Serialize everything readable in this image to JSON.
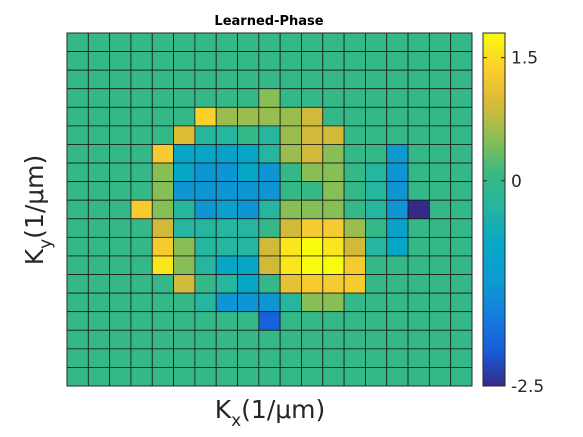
{
  "chart_data": {
    "type": "heatmap",
    "title": "Learned-Phase",
    "xlabel": {
      "base": "K",
      "sub": "x",
      "rest": "(1/μm)"
    },
    "ylabel": {
      "base": "K",
      "sub": "y",
      "rest": "(1/μm)"
    },
    "colormap": "parula",
    "clim": [
      -2.5,
      1.8
    ],
    "colorbar_ticks": [
      {
        "value": 1.5,
        "label": "1.5"
      },
      {
        "value": 0,
        "label": "0"
      },
      {
        "value": -2.5,
        "label": "-2.5"
      }
    ],
    "grid": true,
    "rows": 19,
    "cols": 19,
    "values": [
      [
        0,
        0,
        0,
        0,
        0,
        0,
        0,
        0,
        0,
        0,
        0,
        0,
        0,
        0,
        0,
        0,
        0,
        0,
        0
      ],
      [
        0,
        0,
        0,
        0,
        0,
        0,
        0,
        0,
        0,
        0,
        0,
        0,
        0,
        0,
        0,
        0,
        0,
        0,
        0
      ],
      [
        0,
        0,
        0,
        0,
        0,
        0,
        0,
        0,
        0,
        0,
        0,
        0,
        0,
        0,
        0,
        0,
        0,
        0,
        0
      ],
      [
        0,
        0,
        0,
        0,
        0,
        0,
        0,
        0,
        0,
        0.5,
        0,
        0,
        0,
        0,
        0,
        0,
        0,
        0,
        0
      ],
      [
        0,
        0,
        0,
        0,
        0,
        0,
        1.4,
        0.6,
        0.6,
        0.6,
        0.6,
        0.9,
        0,
        0,
        0,
        0,
        0,
        0,
        0
      ],
      [
        0,
        0,
        0,
        0,
        0,
        1.0,
        -0.3,
        -0.3,
        0,
        -0.3,
        0.6,
        0.9,
        0.9,
        0,
        0,
        0,
        0,
        0,
        0
      ],
      [
        0,
        0,
        0,
        0,
        1.3,
        -0.8,
        -0.8,
        -1.0,
        -0.8,
        -0.3,
        0.6,
        0.9,
        0.5,
        0,
        0,
        -1.2,
        0,
        0,
        0
      ],
      [
        0,
        0,
        0,
        0,
        0.5,
        -0.8,
        -1.3,
        -1.3,
        -0.8,
        -1.3,
        0,
        0.5,
        0.5,
        0,
        -0.3,
        -1.3,
        0,
        0,
        0
      ],
      [
        0,
        0,
        0,
        0,
        0.5,
        -1.3,
        -1.3,
        -1.3,
        -1.3,
        -1.3,
        0,
        0,
        0.5,
        0,
        -0.3,
        -1.3,
        0,
        0,
        0
      ],
      [
        0,
        0,
        0,
        1.3,
        0.5,
        -0.3,
        -1.3,
        -1.0,
        -1.3,
        -0.3,
        0.5,
        0.5,
        0.5,
        0,
        -0.3,
        -1.3,
        -2.5,
        0,
        0
      ],
      [
        0,
        0,
        0,
        0,
        0.9,
        -0.3,
        -0.3,
        -0.3,
        -0.3,
        0,
        0.9,
        1.3,
        1.3,
        0.6,
        0,
        -1.0,
        0,
        0,
        0
      ],
      [
        0,
        0,
        0,
        0,
        1.3,
        0.5,
        -0.3,
        -0.3,
        -0.3,
        0.9,
        1.6,
        1.8,
        1.6,
        0.9,
        -0.3,
        -0.8,
        0,
        0,
        0
      ],
      [
        0,
        0,
        0,
        0,
        1.6,
        0.5,
        -0.3,
        -0.8,
        -0.8,
        0.9,
        1.6,
        1.8,
        1.8,
        1.3,
        0,
        0,
        0,
        0,
        0
      ],
      [
        0,
        0,
        0,
        0,
        0,
        0.9,
        0,
        -0.3,
        -0.8,
        0,
        1.1,
        1.3,
        1.3,
        1.3,
        0,
        0,
        0,
        0,
        0
      ],
      [
        0,
        0,
        0,
        0,
        0,
        0,
        -0.3,
        -1.3,
        -1.3,
        -1.3,
        -0.3,
        0.5,
        0.5,
        0,
        0,
        0,
        0,
        0,
        0
      ],
      [
        0,
        0,
        0,
        0,
        0,
        0,
        0,
        0,
        0,
        -2.0,
        0,
        0,
        0,
        0,
        0,
        0,
        0,
        0,
        0
      ],
      [
        0,
        0,
        0,
        0,
        0,
        0,
        0,
        0,
        0,
        0,
        0,
        0,
        0,
        0,
        0,
        0,
        0,
        0,
        0
      ],
      [
        0,
        0,
        0,
        0,
        0,
        0,
        0,
        0,
        0,
        0,
        0,
        0,
        0,
        0,
        0,
        0,
        0,
        0,
        0
      ],
      [
        0,
        0,
        0,
        0,
        0,
        0,
        0,
        0,
        0,
        0,
        0,
        0,
        0,
        0,
        0,
        0,
        0,
        0,
        0
      ]
    ]
  }
}
